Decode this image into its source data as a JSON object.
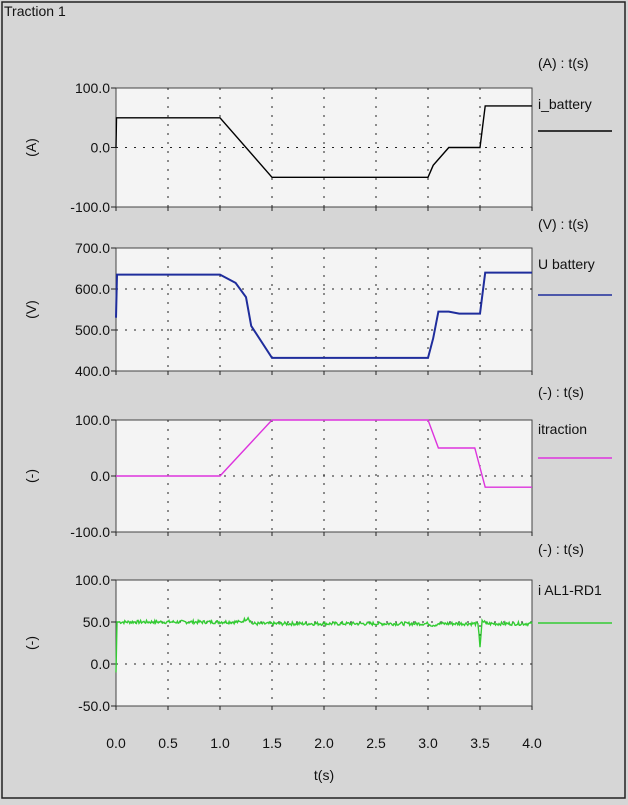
{
  "window_title": "Traction 1",
  "colors": {
    "background": "#d6d6d6",
    "plot_area": "#f4f4f4",
    "i_battery": "#000000",
    "u_battery": "#1f2d9c",
    "itraction": "#dd33dd",
    "i_al1_rd1": "#33cc33"
  },
  "x_axis": {
    "label": "t(s)",
    "ticks": [
      "0.0",
      "0.5",
      "1.0",
      "1.5",
      "2.0",
      "2.5",
      "3.0",
      "3.5",
      "4.0"
    ]
  },
  "chart_data": [
    {
      "type": "line",
      "header": "(A) : t(s)",
      "ylabel": "(A)",
      "ylim": [
        -100,
        100
      ],
      "yticks": [
        "100.0",
        "0.0",
        "-100.0"
      ],
      "grid": true,
      "legend_position": "right",
      "series": [
        {
          "name": "i_battery",
          "x": [
            0,
            0.005,
            0.01,
            0.3,
            0.6,
            0.97,
            1.0,
            1.5,
            3.0,
            3.05,
            3.2,
            3.48,
            3.5,
            3.55,
            3.8,
            4.0
          ],
          "y": [
            0,
            50,
            50,
            50,
            50,
            50,
            50,
            -50,
            -50,
            -30,
            0,
            0,
            0,
            70,
            70,
            70
          ]
        }
      ]
    },
    {
      "type": "line",
      "header": "(V) : t(s)",
      "ylabel": "(V)",
      "ylim": [
        400,
        700
      ],
      "yticks": [
        "700.0",
        "600.0",
        "500.0",
        "400.0"
      ],
      "grid": true,
      "legend_position": "right",
      "series": [
        {
          "name": "U battery",
          "x": [
            0,
            0.01,
            0.5,
            1.0,
            1.15,
            1.25,
            1.3,
            1.5,
            3.0,
            3.05,
            3.1,
            3.2,
            3.3,
            3.5,
            3.55,
            3.6,
            4.0
          ],
          "y": [
            530,
            635,
            635,
            635,
            615,
            580,
            510,
            432,
            432,
            480,
            545,
            545,
            540,
            540,
            640,
            640,
            640
          ]
        }
      ]
    },
    {
      "type": "line",
      "header": "(-) : t(s)",
      "ylabel": "(-)",
      "ylim": [
        -100,
        100
      ],
      "yticks": [
        "100.0",
        "0.0",
        "-100.0"
      ],
      "grid": true,
      "legend_position": "right",
      "series": [
        {
          "name": "itraction",
          "x": [
            0,
            1.0,
            1.5,
            3.0,
            3.1,
            3.45,
            3.55,
            4.0
          ],
          "y": [
            0,
            0,
            100,
            100,
            50,
            50,
            -20,
            -20
          ]
        }
      ]
    },
    {
      "type": "line",
      "header": "(-) : t(s)",
      "ylabel": "(-)",
      "ylim": [
        -50,
        100
      ],
      "yticks": [
        "100.0",
        "50.0",
        "0.0",
        "-50.0"
      ],
      "grid": true,
      "legend_position": "right",
      "series": [
        {
          "name": "i AL1-RD1",
          "x": [
            0,
            0.01,
            0.02,
            1.2,
            1.27,
            1.31,
            2.0,
            3.0,
            3.05,
            3.1,
            3.48,
            3.5,
            3.52,
            3.56,
            4.0
          ],
          "y": [
            -10,
            50,
            50,
            50,
            55,
            48,
            48,
            48,
            46,
            48,
            48,
            20,
            52,
            48,
            48
          ],
          "noise": 2
        }
      ]
    }
  ]
}
